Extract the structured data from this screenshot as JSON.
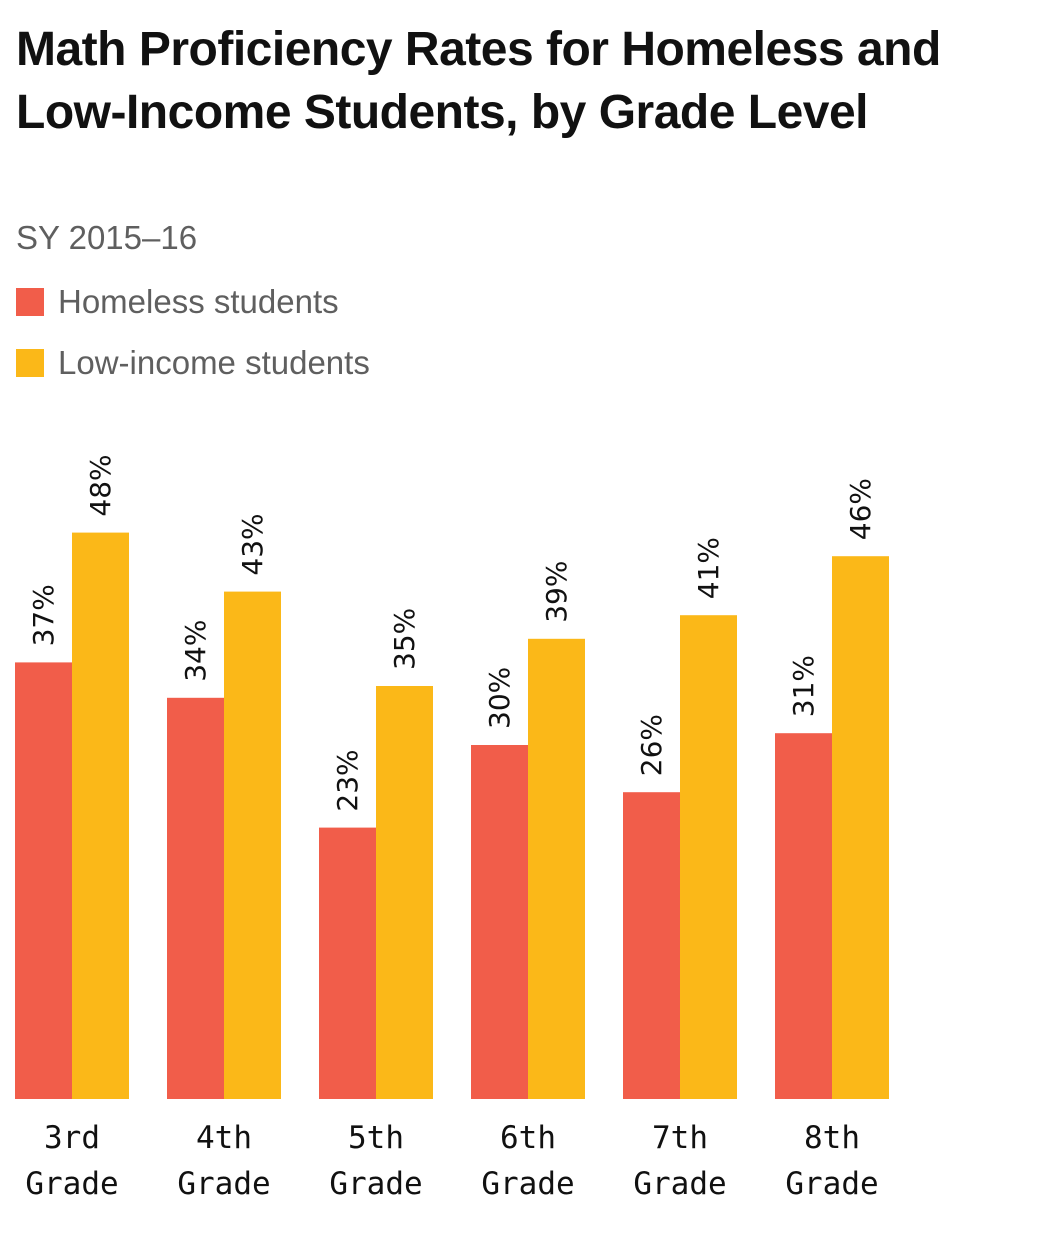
{
  "chart_data": {
    "type": "bar",
    "title": "Math Proficiency Rates for Homeless and Low-Income Students, by Grade Level",
    "subtitle": "SY 2015–16",
    "xlabel": "",
    "ylabel": "",
    "ylim": [
      0,
      60
    ],
    "grid": false,
    "legend_position": "top-left",
    "categories": [
      [
        "3rd",
        "Grade"
      ],
      [
        "4th",
        "Grade"
      ],
      [
        "5th",
        "Grade"
      ],
      [
        "6th",
        "Grade"
      ],
      [
        "7th",
        "Grade"
      ],
      [
        "8th",
        "Grade"
      ]
    ],
    "series": [
      {
        "name": "Homeless students",
        "color": "#f15d4a",
        "values": [
          37,
          34,
          23,
          30,
          26,
          31
        ],
        "labels": [
          "37%",
          "34%",
          "23%",
          "30%",
          "26%",
          "31%"
        ]
      },
      {
        "name": "Low-income students",
        "color": "#fbb818",
        "values": [
          48,
          43,
          35,
          39,
          41,
          46
        ],
        "labels": [
          "48%",
          "43%",
          "35%",
          "39%",
          "41%",
          "46%"
        ]
      }
    ]
  }
}
